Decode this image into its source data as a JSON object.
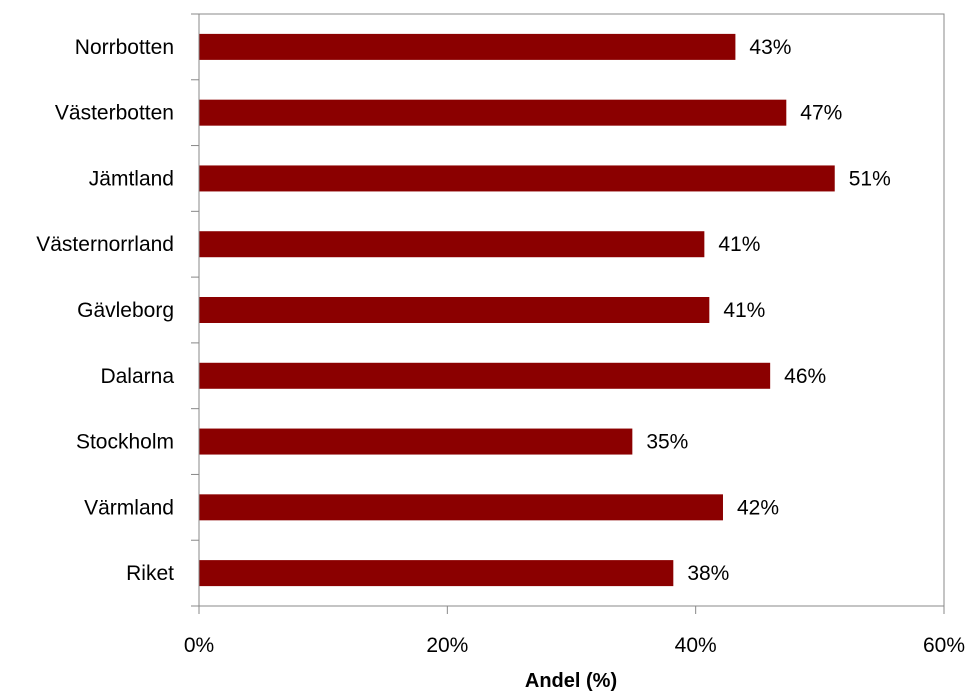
{
  "chart_data": {
    "type": "bar",
    "orientation": "horizontal",
    "categories": [
      "Norrbotten",
      "Västerbotten",
      "Jämtland",
      "Västernorrland",
      "Gävleborg",
      "Dalarna",
      "Stockholm",
      "Värmland",
      "Riket"
    ],
    "values": [
      43.2,
      47.3,
      51.2,
      40.7,
      41.1,
      46.0,
      34.9,
      42.2,
      38.2
    ],
    "value_labels": [
      "43%",
      "47%",
      "51%",
      "41%",
      "41%",
      "46%",
      "35%",
      "42%",
      "38%"
    ],
    "xlabel": "Andel (%)",
    "ylabel": "",
    "xlim": [
      0,
      60
    ],
    "x_ticks": [
      0,
      20,
      40,
      60
    ],
    "x_tick_labels": [
      "0%",
      "20%",
      "40%",
      "60%"
    ],
    "bar_color": "#8b0000",
    "grid": false,
    "legend": "none"
  }
}
